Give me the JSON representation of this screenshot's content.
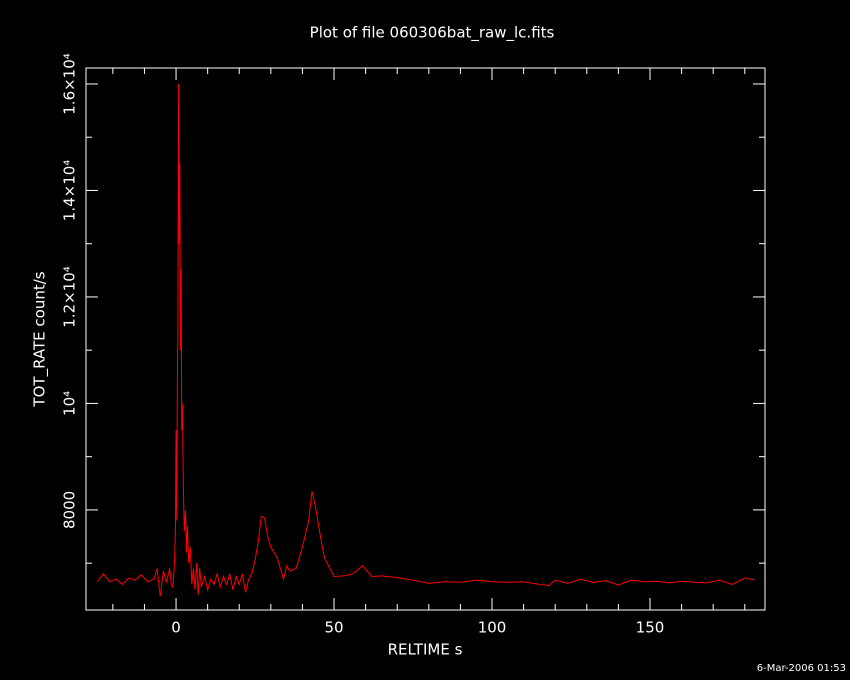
{
  "chart_data": {
    "type": "line",
    "title": "Plot of file 060306bat_raw_lc.fits",
    "xlabel": "RELTIME  s",
    "ylabel": "TOT_RATE  count/s",
    "footer": "6-Mar-2006 01:53",
    "xlim": [
      -28.5,
      186.4
    ],
    "ylim": [
      6120,
      16300
    ],
    "xticks": [
      0,
      50,
      100,
      150
    ],
    "yticks": [
      8000,
      {
        "value": 10000,
        "label": "10⁴"
      },
      {
        "value": 12000,
        "label": "1.2×10⁴"
      },
      {
        "value": 14000,
        "label": "1.4×10⁴"
      },
      {
        "value": 16000,
        "label": "1.6×10⁴"
      }
    ],
    "x_minor_ticks": [
      -20,
      -10,
      10,
      20,
      30,
      40,
      60,
      70,
      80,
      90,
      110,
      120,
      130,
      140,
      160,
      170,
      180
    ],
    "y_minor_ticks": [
      7000,
      9000,
      11000,
      13000,
      15000
    ],
    "x": [
      -25,
      -23,
      -21,
      -19,
      -17,
      -15,
      -13,
      -11,
      -9,
      -7,
      -6,
      -5,
      -4,
      -3,
      -2,
      -1.5,
      -1,
      -0.5,
      -0.2,
      0,
      0.2,
      0.4,
      0.6,
      0.8,
      1.0,
      1.2,
      1.4,
      1.6,
      1.8,
      2.0,
      2.3,
      2.6,
      3,
      3.3,
      3.6,
      4,
      4.5,
      5,
      5.5,
      6,
      6.5,
      7,
      7.5,
      8,
      9,
      10,
      11,
      12,
      13,
      14,
      15,
      16,
      17,
      18,
      19,
      20,
      21,
      22,
      23,
      24,
      25,
      26,
      27,
      28,
      29,
      30,
      31,
      32,
      33,
      34,
      35,
      36,
      38,
      40,
      42,
      43,
      44,
      46,
      47,
      50,
      53,
      56,
      59,
      62,
      65,
      70,
      75,
      80,
      85,
      90,
      95,
      100,
      105,
      110,
      115,
      118,
      120,
      124,
      128,
      132,
      136,
      140,
      144,
      148,
      152,
      156,
      160,
      164,
      168,
      172,
      176,
      180,
      183
    ],
    "series": [
      {
        "color": "#ff0000",
        "values": [
          6650,
          6800,
          6650,
          6700,
          6600,
          6720,
          6680,
          6780,
          6650,
          6700,
          6900,
          6380,
          6850,
          6650,
          6900,
          6600,
          6550,
          7000,
          7600,
          9500,
          7800,
          10300,
          11500,
          16000,
          13000,
          14500,
          11000,
          12500,
          9500,
          10000,
          8500,
          7600,
          8000,
          7200,
          7700,
          7000,
          7300,
          6600,
          6900,
          6500,
          7000,
          6400,
          6900,
          6550,
          6750,
          6500,
          6700,
          6600,
          6800,
          6550,
          6750,
          6600,
          6800,
          6500,
          6750,
          6600,
          6800,
          6450,
          6700,
          6800,
          7050,
          7400,
          7880,
          7850,
          7500,
          7300,
          7200,
          7100,
          6900,
          6700,
          6950,
          6850,
          6900,
          7300,
          7800,
          8350,
          8100,
          7400,
          7100,
          6750,
          6760,
          6800,
          6950,
          6750,
          6760,
          6730,
          6680,
          6620,
          6650,
          6640,
          6680,
          6650,
          6640,
          6650,
          6600,
          6580,
          6680,
          6620,
          6700,
          6640,
          6670,
          6590,
          6680,
          6650,
          6660,
          6630,
          6660,
          6640,
          6630,
          6680,
          6600,
          6720,
          6690
        ]
      }
    ]
  }
}
